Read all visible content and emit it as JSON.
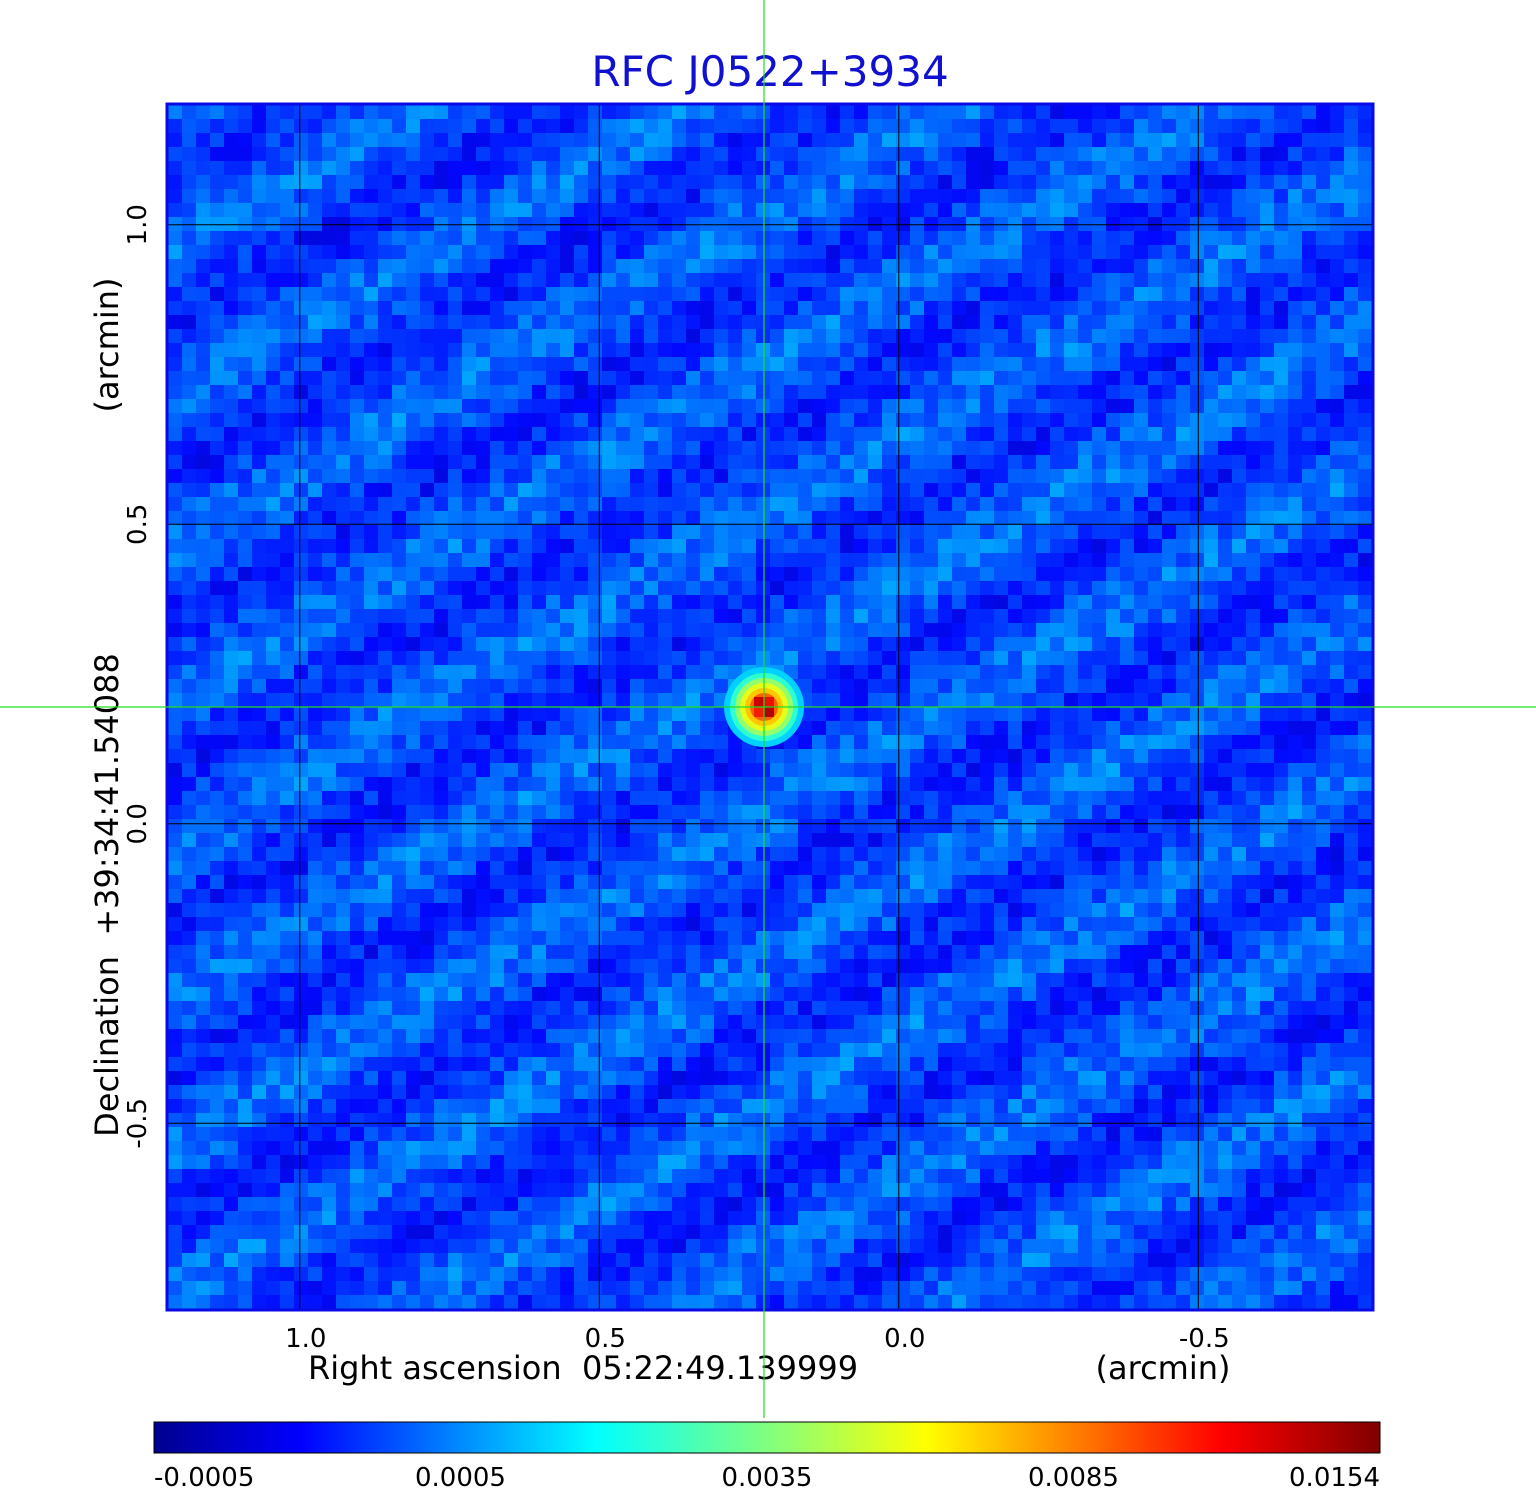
{
  "chart_data": {
    "type": "heatmap",
    "title": "RFC J0522+3934",
    "xlabel": "Right ascension  05:22:49.139999",
    "xunit": "(arcmin)",
    "ylabel": "Declination  +39:34:41.54088",
    "yunit": "(arcmin)",
    "xlim": [
      1.22,
      -0.79
    ],
    "ylim": [
      -0.81,
      1.2
    ],
    "x_ticks": [
      1.0,
      0.5,
      0.0,
      -0.5
    ],
    "x_tick_labels": [
      "1.0",
      "0.5",
      "0.0",
      "-0.5"
    ],
    "y_ticks": [
      1.0,
      0.5,
      0.0,
      -0.5
    ],
    "y_tick_labels": [
      "1.0",
      "0.5",
      "0.0",
      "-0.5"
    ],
    "grid": true,
    "crosshair": {
      "x": 0.225,
      "y": 0.195
    },
    "source": {
      "x": 0.225,
      "y": 0.195,
      "peak": 0.0154
    },
    "background_level": 0.0003,
    "colorbar": {
      "orientation": "horizontal",
      "tick_labels": [
        "-0.0005",
        "0.0005",
        "0.0035",
        "0.0085",
        "0.0154"
      ],
      "min": -0.0005,
      "max": 0.0154,
      "colormap": "jet"
    },
    "colors": {
      "title": "#1010d0",
      "frame": "#0a0ae6",
      "grid": "#000000",
      "crosshair": "#22dd22"
    }
  }
}
